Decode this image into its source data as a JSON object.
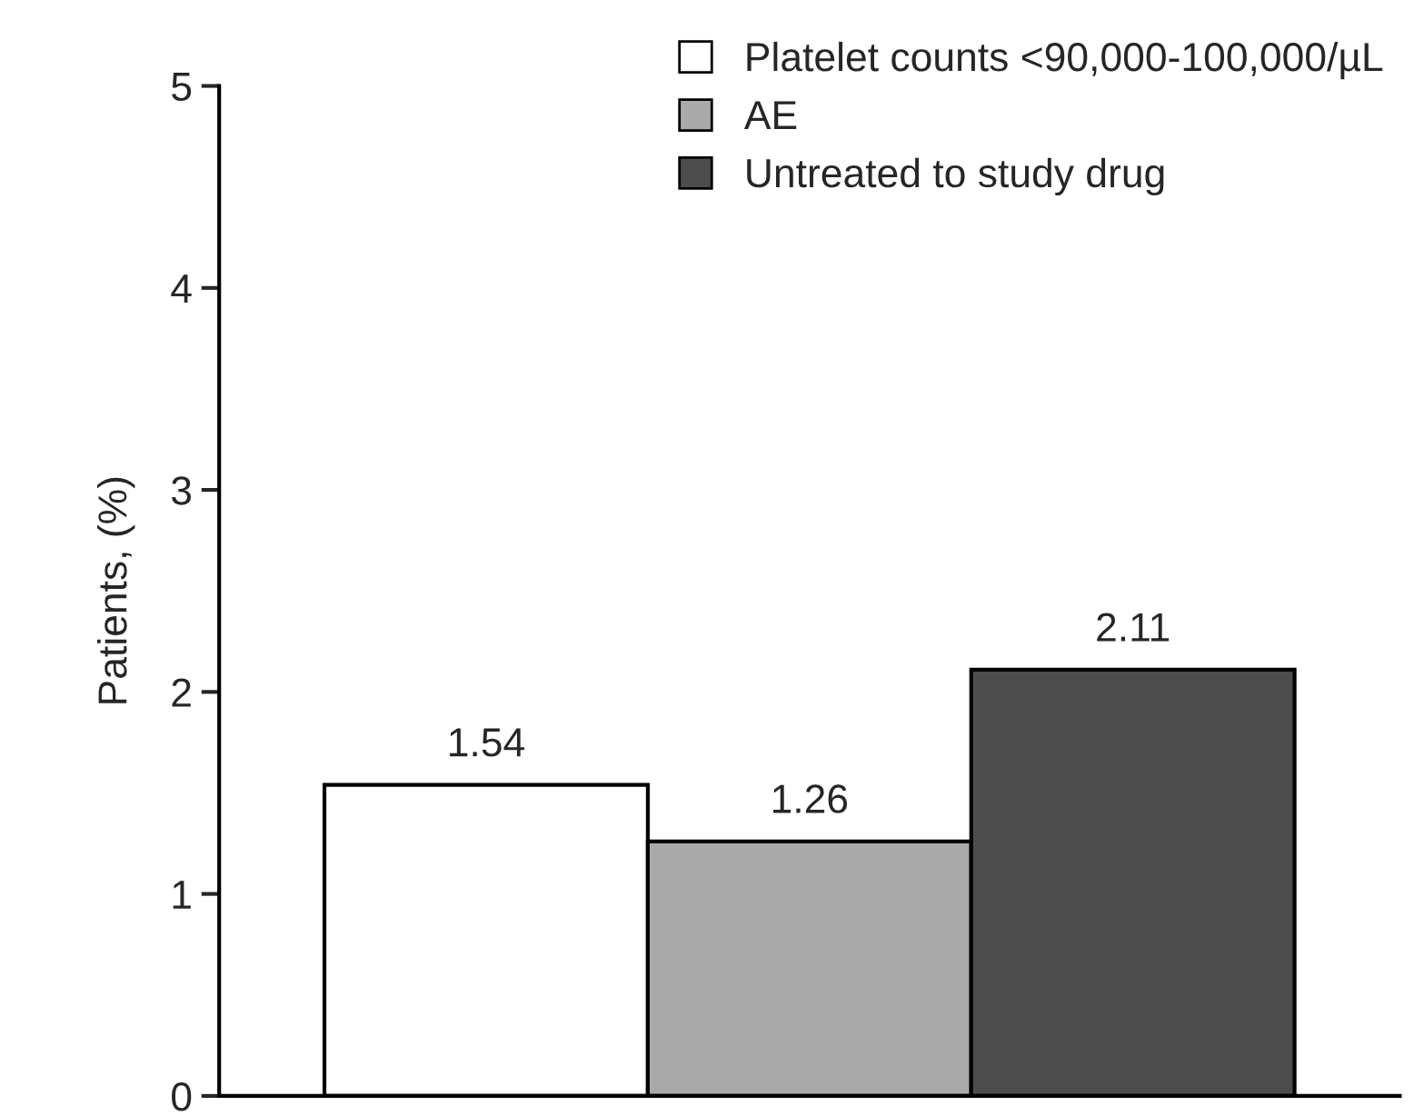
{
  "chart_data": {
    "type": "bar",
    "ylabel": "Patients, (%)",
    "categories": [
      null
    ],
    "series": [
      {
        "name": "Platelet counts <90,000-100,000/µL",
        "color": "#ffffff",
        "values": [
          1.54
        ]
      },
      {
        "name": "AE",
        "color": "#aaaaaa",
        "values": [
          1.26
        ]
      },
      {
        "name": "Untreated to study drug",
        "color": "#4d4d4d",
        "values": [
          2.11
        ]
      }
    ],
    "ylim": [
      0,
      5
    ],
    "yticks": [
      0,
      1,
      2,
      3,
      4,
      5
    ],
    "data_labels": true,
    "legend": "top right",
    "grid": false
  }
}
